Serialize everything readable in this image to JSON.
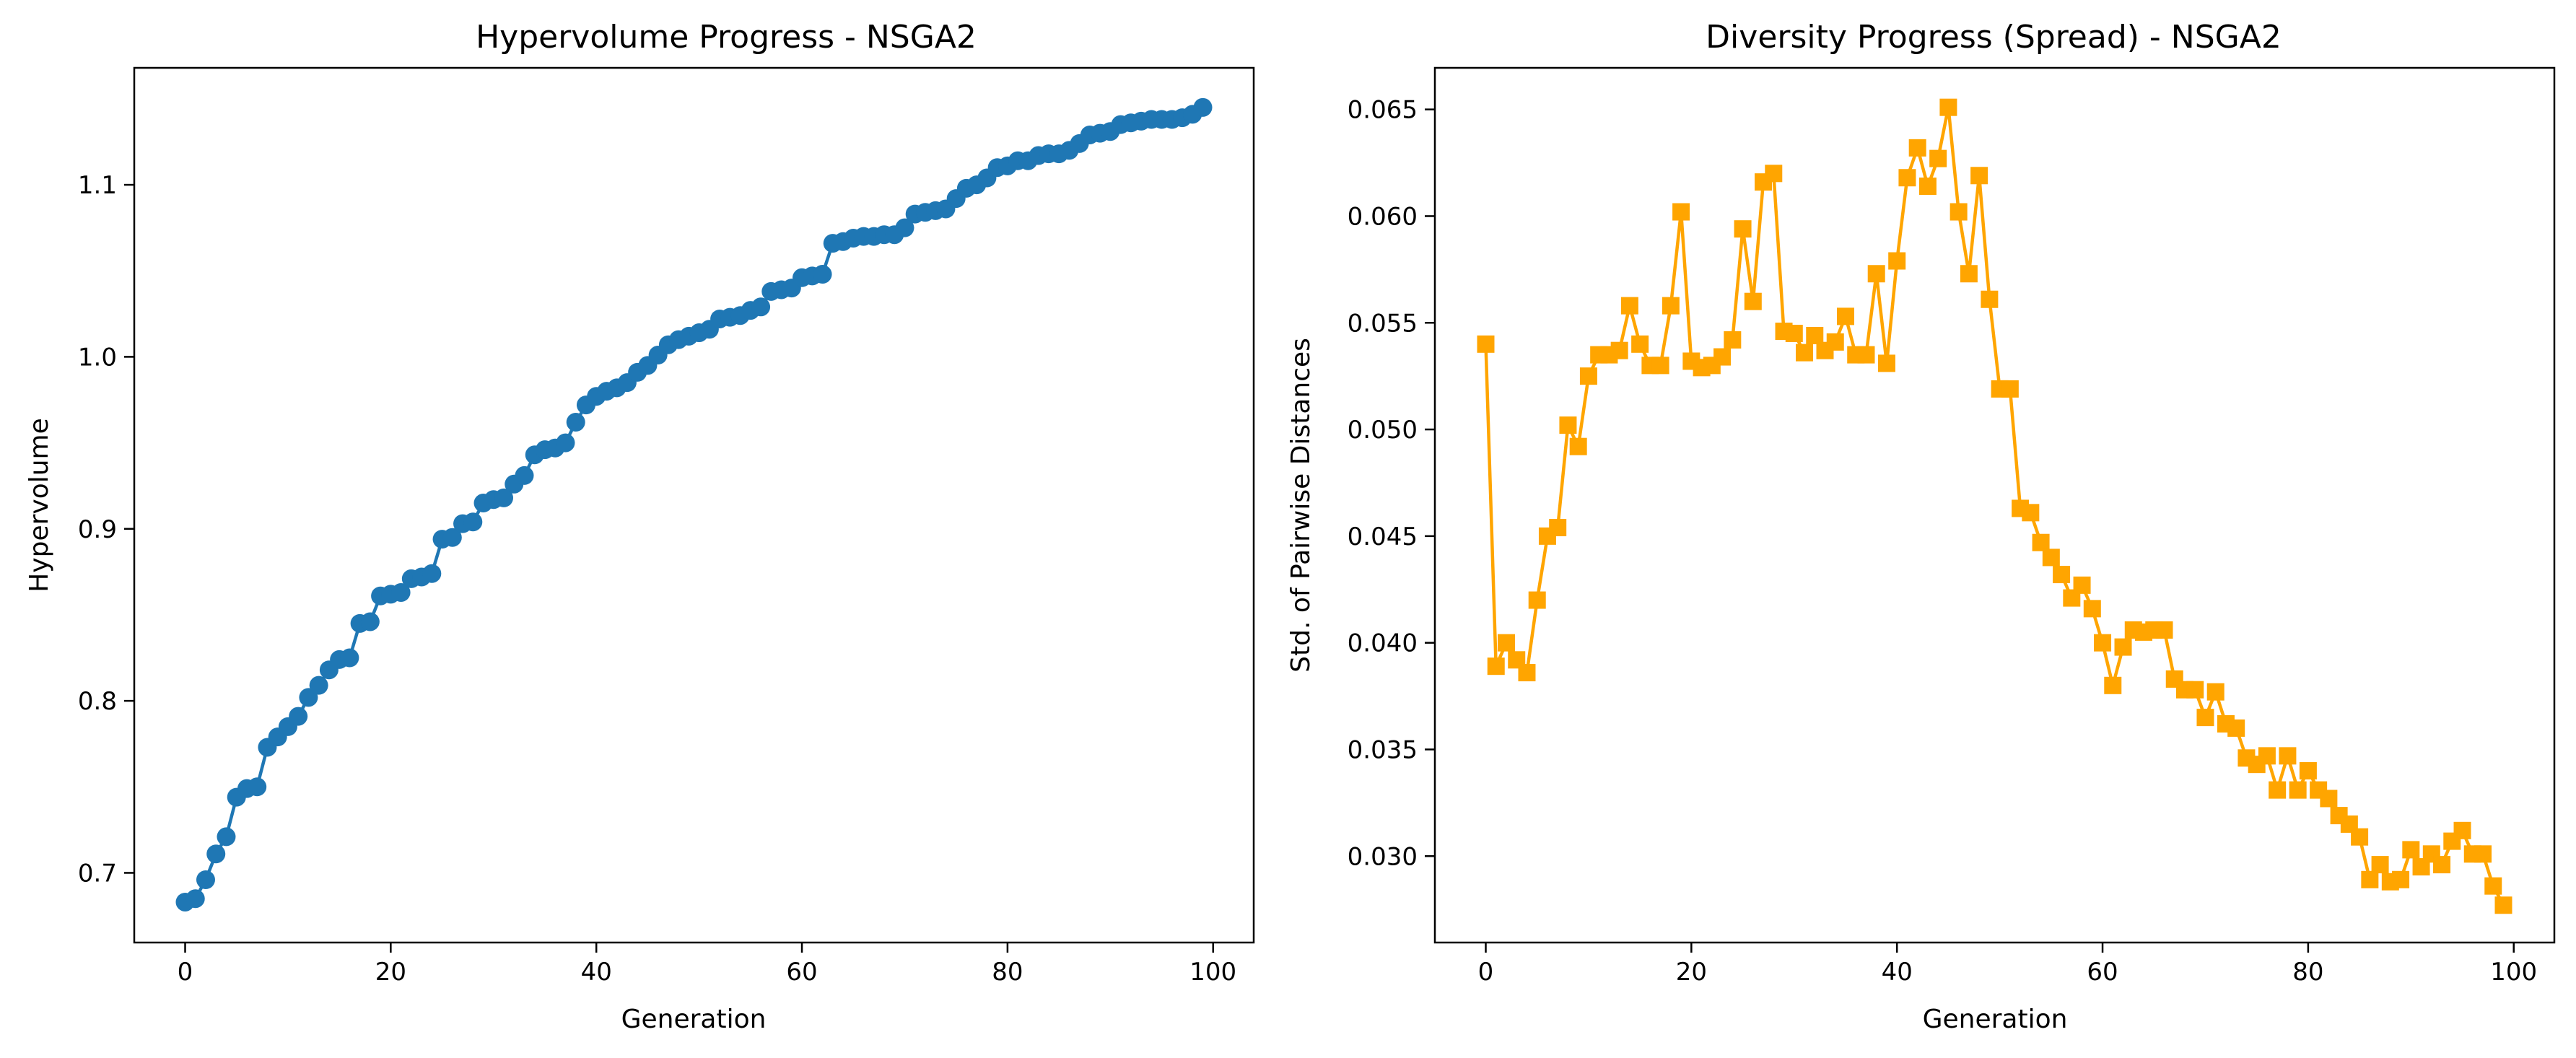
{
  "chart_data": [
    {
      "type": "line",
      "title": "Hypervolume Progress - NSGA2",
      "xlabel": "Generation",
      "ylabel": "Hypervolume",
      "xlim": [
        -4.95,
        103.95
      ],
      "ylim": [
        0.6595,
        1.168
      ],
      "xticks": [
        0,
        20,
        40,
        60,
        80,
        100
      ],
      "yticks": [
        0.7,
        0.8,
        0.9,
        1.0,
        1.1
      ],
      "ytick_labels": [
        "0.7",
        "0.8",
        "0.9",
        "1.0",
        "1.1"
      ],
      "marker": "circle",
      "color": "#1f77b4",
      "grid": false,
      "legend": "none",
      "series": [
        {
          "x": [
            0,
            1,
            2,
            3,
            4,
            5,
            6,
            7,
            8,
            9,
            10,
            11,
            12,
            13,
            14,
            15,
            16,
            17,
            18,
            19,
            20,
            21,
            22,
            23,
            24,
            25,
            26,
            27,
            28,
            29,
            30,
            31,
            32,
            33,
            34,
            35,
            36,
            37,
            38,
            39,
            40,
            41,
            42,
            43,
            44,
            45,
            46,
            47,
            48,
            49,
            50,
            51,
            52,
            53,
            54,
            55,
            56,
            57,
            58,
            59,
            60,
            61,
            62,
            63,
            64,
            65,
            66,
            67,
            68,
            69,
            70,
            71,
            72,
            73,
            74,
            75,
            76,
            77,
            78,
            79,
            80,
            81,
            82,
            83,
            84,
            85,
            86,
            87,
            88,
            89,
            90,
            91,
            92,
            93,
            94,
            95,
            96,
            97,
            98,
            99
          ],
          "values": [
            0.683,
            0.685,
            0.696,
            0.711,
            0.721,
            0.744,
            0.749,
            0.75,
            0.773,
            0.779,
            0.785,
            0.791,
            0.802,
            0.809,
            0.818,
            0.824,
            0.825,
            0.845,
            0.846,
            0.861,
            0.862,
            0.863,
            0.871,
            0.872,
            0.874,
            0.894,
            0.895,
            0.903,
            0.904,
            0.915,
            0.917,
            0.918,
            0.926,
            0.931,
            0.943,
            0.946,
            0.947,
            0.95,
            0.962,
            0.972,
            0.977,
            0.98,
            0.982,
            0.985,
            0.991,
            0.995,
            1.001,
            1.007,
            1.01,
            1.012,
            1.014,
            1.016,
            1.022,
            1.023,
            1.024,
            1.027,
            1.029,
            1.038,
            1.039,
            1.04,
            1.046,
            1.047,
            1.048,
            1.066,
            1.067,
            1.069,
            1.07,
            1.07,
            1.071,
            1.071,
            1.075,
            1.083,
            1.084,
            1.085,
            1.086,
            1.092,
            1.098,
            1.1,
            1.104,
            1.11,
            1.111,
            1.114,
            1.114,
            1.117,
            1.118,
            1.118,
            1.12,
            1.124,
            1.129,
            1.13,
            1.131,
            1.135,
            1.136,
            1.137,
            1.138,
            1.138,
            1.138,
            1.139,
            1.141,
            1.145
          ]
        }
      ]
    },
    {
      "type": "line",
      "title": "Diversity Progress (Spread) - NSGA2",
      "xlabel": "Generation",
      "ylabel": "Std. of Pairwise Distances",
      "xlim": [
        -4.95,
        103.95
      ],
      "ylim": [
        0.02595,
        0.06695
      ],
      "xticks": [
        0,
        20,
        40,
        60,
        80,
        100
      ],
      "yticks": [
        0.03,
        0.035,
        0.04,
        0.045,
        0.05,
        0.055,
        0.06,
        0.065
      ],
      "ytick_labels": [
        "0.030",
        "0.035",
        "0.040",
        "0.045",
        "0.050",
        "0.055",
        "0.060",
        "0.065"
      ],
      "marker": "square",
      "color": "#ffa500",
      "grid": false,
      "legend": "none",
      "series": [
        {
          "x": [
            0,
            1,
            2,
            3,
            4,
            5,
            6,
            7,
            8,
            9,
            10,
            11,
            12,
            13,
            14,
            15,
            16,
            17,
            18,
            19,
            20,
            21,
            22,
            23,
            24,
            25,
            26,
            27,
            28,
            29,
            30,
            31,
            32,
            33,
            34,
            35,
            36,
            37,
            38,
            39,
            40,
            41,
            42,
            43,
            44,
            45,
            46,
            47,
            48,
            49,
            50,
            51,
            52,
            53,
            54,
            55,
            56,
            57,
            58,
            59,
            60,
            61,
            62,
            63,
            64,
            65,
            66,
            67,
            68,
            69,
            70,
            71,
            72,
            73,
            74,
            75,
            76,
            77,
            78,
            79,
            80,
            81,
            82,
            83,
            84,
            85,
            86,
            87,
            88,
            89,
            90,
            91,
            92,
            93,
            94,
            95,
            96,
            97,
            98,
            99
          ],
          "values": [
            0.054,
            0.0389,
            0.04,
            0.0392,
            0.0386,
            0.042,
            0.045,
            0.0454,
            0.0502,
            0.0492,
            0.0525,
            0.0535,
            0.0535,
            0.0537,
            0.0558,
            0.054,
            0.053,
            0.053,
            0.0558,
            0.0602,
            0.0532,
            0.0529,
            0.053,
            0.0534,
            0.0542,
            0.0594,
            0.056,
            0.0616,
            0.062,
            0.0546,
            0.0545,
            0.0536,
            0.0544,
            0.0537,
            0.0541,
            0.0553,
            0.0535,
            0.0535,
            0.0573,
            0.0531,
            0.0579,
            0.0618,
            0.0632,
            0.0614,
            0.0627,
            0.0651,
            0.0602,
            0.0573,
            0.0619,
            0.0561,
            0.0519,
            0.0519,
            0.0463,
            0.0461,
            0.0447,
            0.044,
            0.0432,
            0.0421,
            0.0427,
            0.0416,
            0.04,
            0.038,
            0.0398,
            0.0406,
            0.0405,
            0.0406,
            0.0406,
            0.0383,
            0.0378,
            0.0378,
            0.0365,
            0.0377,
            0.0362,
            0.036,
            0.0346,
            0.0343,
            0.0347,
            0.0331,
            0.0347,
            0.0331,
            0.034,
            0.0331,
            0.0327,
            0.0319,
            0.0315,
            0.0309,
            0.0289,
            0.0296,
            0.0288,
            0.0289,
            0.0303,
            0.0295,
            0.0301,
            0.0296,
            0.0307,
            0.0312,
            0.0301,
            0.0301,
            0.0286,
            0.0277
          ]
        }
      ]
    }
  ]
}
